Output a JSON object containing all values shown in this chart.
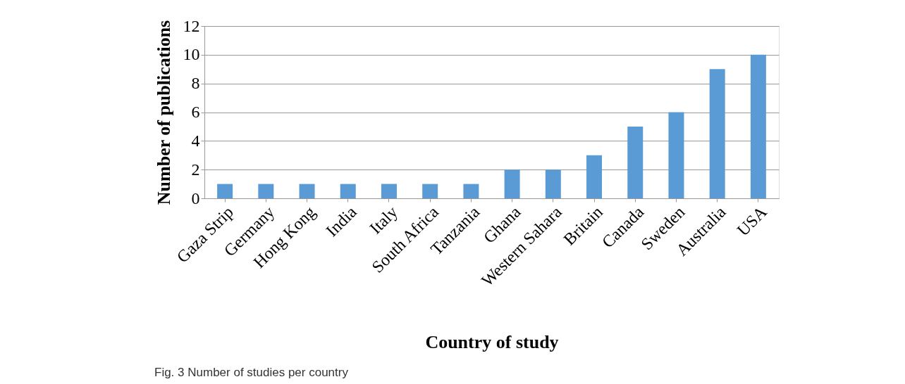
{
  "chart_data": {
    "type": "bar",
    "xlabel": "Country of  study",
    "ylabel": "Number of publications",
    "categories": [
      "Gaza Strip",
      "Germany",
      "Hong Kong",
      "India",
      "Italy",
      "South Africa",
      "Tanzania",
      "Ghana",
      "Western Sahara",
      "Britain",
      "Canada",
      "Sweden",
      "Australia",
      "USA"
    ],
    "values": [
      1,
      1,
      1,
      1,
      1,
      1,
      1,
      2,
      2,
      3,
      5,
      6,
      9,
      10
    ],
    "color": "#5b9bd5",
    "ylim": [
      0,
      12
    ],
    "yticks": [
      0,
      2,
      4,
      6,
      8,
      10,
      12
    ],
    "grid": "y",
    "annotations": [
      "Fig. 3 Number of studies per country"
    ]
  }
}
